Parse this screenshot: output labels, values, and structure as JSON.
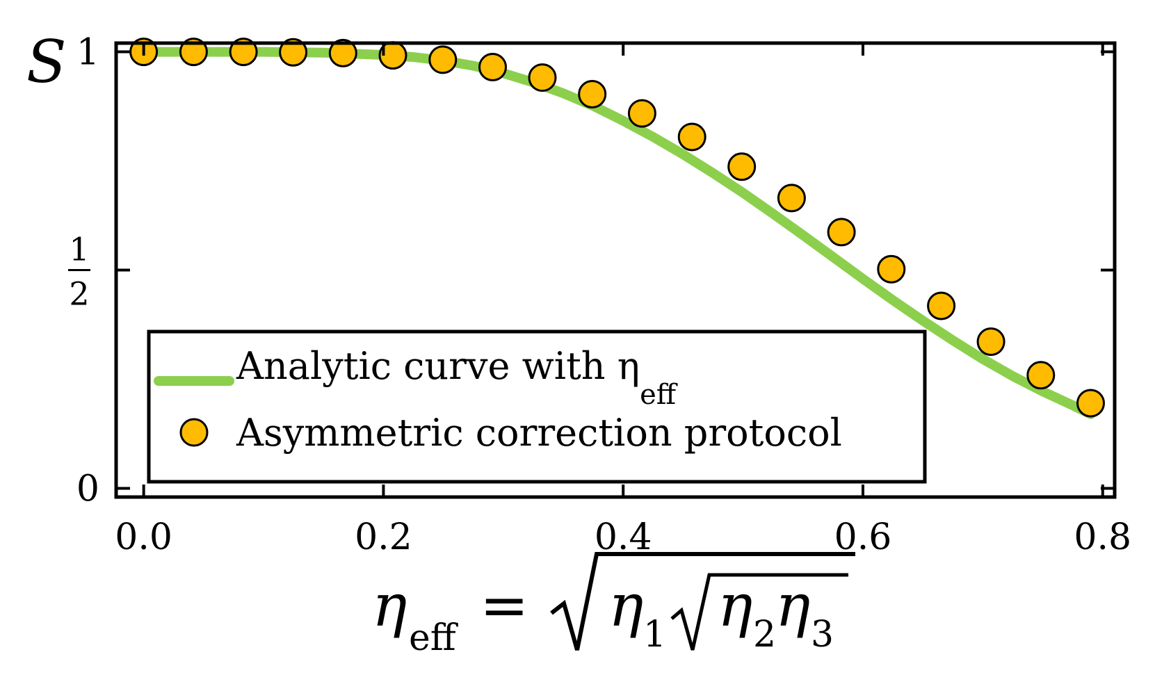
{
  "chart_data": {
    "type": "line",
    "title": "",
    "ylabel": "S",
    "xlabel": {
      "lhs": "η",
      "lhs_sub": "eff",
      "eq": "=",
      "eta": "η",
      "sub1": "1",
      "sub2": "2",
      "sub3": "3"
    },
    "xlim": [
      -0.023,
      0.81
    ],
    "ylim": [
      -0.02,
      1.02
    ],
    "xticks": [
      {
        "value": 0.0,
        "label": "0.0"
      },
      {
        "value": 0.2,
        "label": "0.2"
      },
      {
        "value": 0.4,
        "label": "0.4"
      },
      {
        "value": 0.6,
        "label": "0.6"
      },
      {
        "value": 0.8,
        "label": "0.8"
      }
    ],
    "yticks": [
      {
        "value": 0,
        "label": "0"
      },
      {
        "value": 0.5,
        "num": "1",
        "den": "2"
      },
      {
        "value": 1,
        "label": "1"
      }
    ],
    "grid": false,
    "legend_position": "bottom-left",
    "series": [
      {
        "name": "Analytic curve with η",
        "name_sub": "eff",
        "kind": "line",
        "color": "#8ccf4d",
        "x": [
          0.0,
          0.05,
          0.1,
          0.15,
          0.2,
          0.225,
          0.25,
          0.275,
          0.3,
          0.325,
          0.35,
          0.375,
          0.4,
          0.425,
          0.45,
          0.475,
          0.5,
          0.525,
          0.55,
          0.575,
          0.6,
          0.625,
          0.65,
          0.675,
          0.7,
          0.725,
          0.75,
          0.775,
          0.79
        ],
        "y": [
          1.0,
          1.0,
          1.0,
          0.998,
          0.993,
          0.988,
          0.98,
          0.968,
          0.951,
          0.93,
          0.905,
          0.876,
          0.842,
          0.805,
          0.765,
          0.722,
          0.677,
          0.629,
          0.58,
          0.53,
          0.48,
          0.431,
          0.384,
          0.339,
          0.296,
          0.257,
          0.222,
          0.19,
          0.17
        ]
      },
      {
        "name": "Asymmetric correction protocol",
        "kind": "scatter",
        "color": "#ffbb00",
        "edge_color": "#000000",
        "x": [
          0.0,
          0.0416,
          0.0832,
          0.1247,
          0.1663,
          0.2079,
          0.2495,
          0.2911,
          0.3326,
          0.3742,
          0.4158,
          0.4574,
          0.4989,
          0.5405,
          0.5821,
          0.6237,
          0.6653,
          0.7068,
          0.7484,
          0.79
        ],
        "y": [
          1.0,
          1.0,
          1.0,
          0.999,
          0.997,
          0.992,
          0.982,
          0.965,
          0.941,
          0.903,
          0.859,
          0.805,
          0.737,
          0.665,
          0.587,
          0.502,
          0.418,
          0.336,
          0.259,
          0.195
        ]
      }
    ]
  }
}
